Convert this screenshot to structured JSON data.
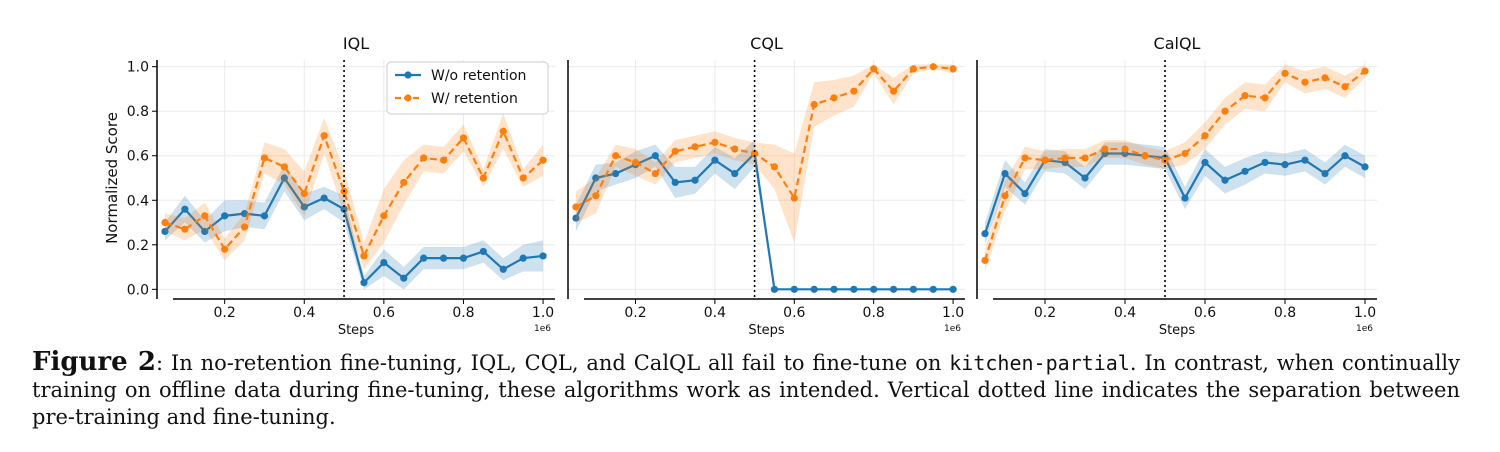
{
  "caption": {
    "label": "Figure 2",
    "text_1": ": In no-retention fine-tuning, IQL, CQL, and CalQL all fail to fine-tune on ",
    "code": "kitchen-partial",
    "text_2": ". In contrast, when continually training on offline data during fine-tuning, these algorithms work as intended. Vertical dotted line indicates the separation between pre-training and fine-tuning."
  },
  "chart_data": [
    {
      "type": "line",
      "title": "IQL",
      "xlabel": "Steps",
      "ylabel": "Normalized Score",
      "x_scale_note": "1e6",
      "xlim": [
        0.03,
        1.03
      ],
      "ylim": [
        -0.03,
        1.03
      ],
      "xticks": [
        "0.2",
        "0.4",
        "0.6",
        "0.8",
        "1.0"
      ],
      "yticks": [
        "0.0",
        "0.2",
        "0.4",
        "0.6",
        "0.8",
        "1.0"
      ],
      "vline_x": 0.5,
      "legend": "top-right",
      "grid": true,
      "x": [
        0.05,
        0.1,
        0.15,
        0.2,
        0.25,
        0.3,
        0.35,
        0.4,
        0.45,
        0.5,
        0.55,
        0.6,
        0.65,
        0.7,
        0.75,
        0.8,
        0.85,
        0.9,
        0.95,
        1.0
      ],
      "series": [
        {
          "name": "W/o retention",
          "color": "#1f77b4",
          "dashed": false,
          "values": [
            0.26,
            0.36,
            0.26,
            0.33,
            0.34,
            0.33,
            0.5,
            0.37,
            0.41,
            0.36,
            0.03,
            0.12,
            0.05,
            0.14,
            0.14,
            0.14,
            0.17,
            0.09,
            0.14,
            0.15
          ],
          "spread": [
            0.04,
            0.06,
            0.05,
            0.07,
            0.06,
            0.06,
            0.06,
            0.06,
            0.05,
            0.06,
            0.03,
            0.06,
            0.05,
            0.05,
            0.05,
            0.05,
            0.05,
            0.05,
            0.06,
            0.07
          ]
        },
        {
          "name": "W/ retention",
          "color": "#ff7f0e",
          "dashed": true,
          "values": [
            0.3,
            0.27,
            0.33,
            0.18,
            0.28,
            0.59,
            0.55,
            0.43,
            0.69,
            0.44,
            0.15,
            0.33,
            0.48,
            0.59,
            0.58,
            0.68,
            0.5,
            0.71,
            0.5,
            0.58
          ],
          "spread": [
            0.04,
            0.05,
            0.06,
            0.05,
            0.06,
            0.07,
            0.08,
            0.1,
            0.08,
            0.1,
            0.06,
            0.12,
            0.1,
            0.06,
            0.06,
            0.06,
            0.04,
            0.08,
            0.04,
            0.07
          ]
        }
      ]
    },
    {
      "type": "line",
      "title": "CQL",
      "xlabel": "Steps",
      "ylabel": "",
      "x_scale_note": "1e6",
      "xlim": [
        0.03,
        1.03
      ],
      "ylim": [
        -0.03,
        1.03
      ],
      "xticks": [
        "0.2",
        "0.4",
        "0.6",
        "0.8",
        "1.0"
      ],
      "yticks": [],
      "vline_x": 0.5,
      "grid": true,
      "x": [
        0.05,
        0.1,
        0.15,
        0.2,
        0.25,
        0.3,
        0.35,
        0.4,
        0.45,
        0.5,
        0.55,
        0.6,
        0.65,
        0.7,
        0.75,
        0.8,
        0.85,
        0.9,
        0.95,
        1.0
      ],
      "series": [
        {
          "name": "W/o retention",
          "color": "#1f77b4",
          "dashed": false,
          "values": [
            0.32,
            0.5,
            0.52,
            0.56,
            0.6,
            0.48,
            0.49,
            0.58,
            0.52,
            0.61,
            0.0,
            0.0,
            0.0,
            0.0,
            0.0,
            0.0,
            0.0,
            0.0,
            0.0,
            0.0
          ],
          "spread": [
            0.06,
            0.06,
            0.05,
            0.06,
            0.05,
            0.07,
            0.06,
            0.06,
            0.07,
            0.06,
            0.0,
            0.0,
            0.0,
            0.0,
            0.0,
            0.0,
            0.0,
            0.0,
            0.0,
            0.0
          ]
        },
        {
          "name": "W/ retention",
          "color": "#ff7f0e",
          "dashed": true,
          "values": [
            0.37,
            0.42,
            0.6,
            0.57,
            0.52,
            0.62,
            0.64,
            0.66,
            0.63,
            0.61,
            0.55,
            0.41,
            0.83,
            0.86,
            0.89,
            0.99,
            0.89,
            0.99,
            1.0,
            0.99
          ],
          "spread": [
            0.07,
            0.08,
            0.05,
            0.06,
            0.05,
            0.05,
            0.05,
            0.05,
            0.05,
            0.05,
            0.1,
            0.2,
            0.1,
            0.08,
            0.07,
            0.02,
            0.06,
            0.02,
            0.01,
            0.02
          ]
        }
      ]
    },
    {
      "type": "line",
      "title": "CalQL",
      "xlabel": "Steps",
      "ylabel": "",
      "x_scale_note": "1e6",
      "xlim": [
        0.03,
        1.03
      ],
      "ylim": [
        -0.03,
        1.03
      ],
      "xticks": [
        "0.2",
        "0.4",
        "0.6",
        "0.8",
        "1.0"
      ],
      "yticks": [],
      "vline_x": 0.5,
      "grid": true,
      "x": [
        0.05,
        0.1,
        0.15,
        0.2,
        0.25,
        0.3,
        0.35,
        0.4,
        0.45,
        0.5,
        0.55,
        0.6,
        0.65,
        0.7,
        0.75,
        0.8,
        0.85,
        0.9,
        0.95,
        1.0
      ],
      "series": [
        {
          "name": "W/o retention",
          "color": "#1f77b4",
          "dashed": false,
          "values": [
            0.25,
            0.52,
            0.43,
            0.58,
            0.57,
            0.5,
            0.61,
            0.61,
            0.6,
            0.59,
            0.41,
            0.57,
            0.49,
            0.53,
            0.57,
            0.56,
            0.58,
            0.52,
            0.6,
            0.55
          ],
          "spread": [
            0.05,
            0.06,
            0.05,
            0.05,
            0.05,
            0.05,
            0.05,
            0.05,
            0.05,
            0.05,
            0.05,
            0.06,
            0.06,
            0.06,
            0.05,
            0.05,
            0.05,
            0.05,
            0.05,
            0.05
          ]
        },
        {
          "name": "W/ retention",
          "color": "#ff7f0e",
          "dashed": true,
          "values": [
            0.13,
            0.42,
            0.59,
            0.58,
            0.59,
            0.59,
            0.63,
            0.63,
            0.6,
            0.58,
            0.61,
            0.69,
            0.8,
            0.87,
            0.86,
            0.97,
            0.93,
            0.95,
            0.91,
            0.98
          ],
          "spread": [
            0.05,
            0.07,
            0.05,
            0.04,
            0.04,
            0.04,
            0.04,
            0.04,
            0.04,
            0.04,
            0.05,
            0.06,
            0.06,
            0.06,
            0.06,
            0.04,
            0.05,
            0.05,
            0.05,
            0.03
          ]
        }
      ]
    }
  ]
}
